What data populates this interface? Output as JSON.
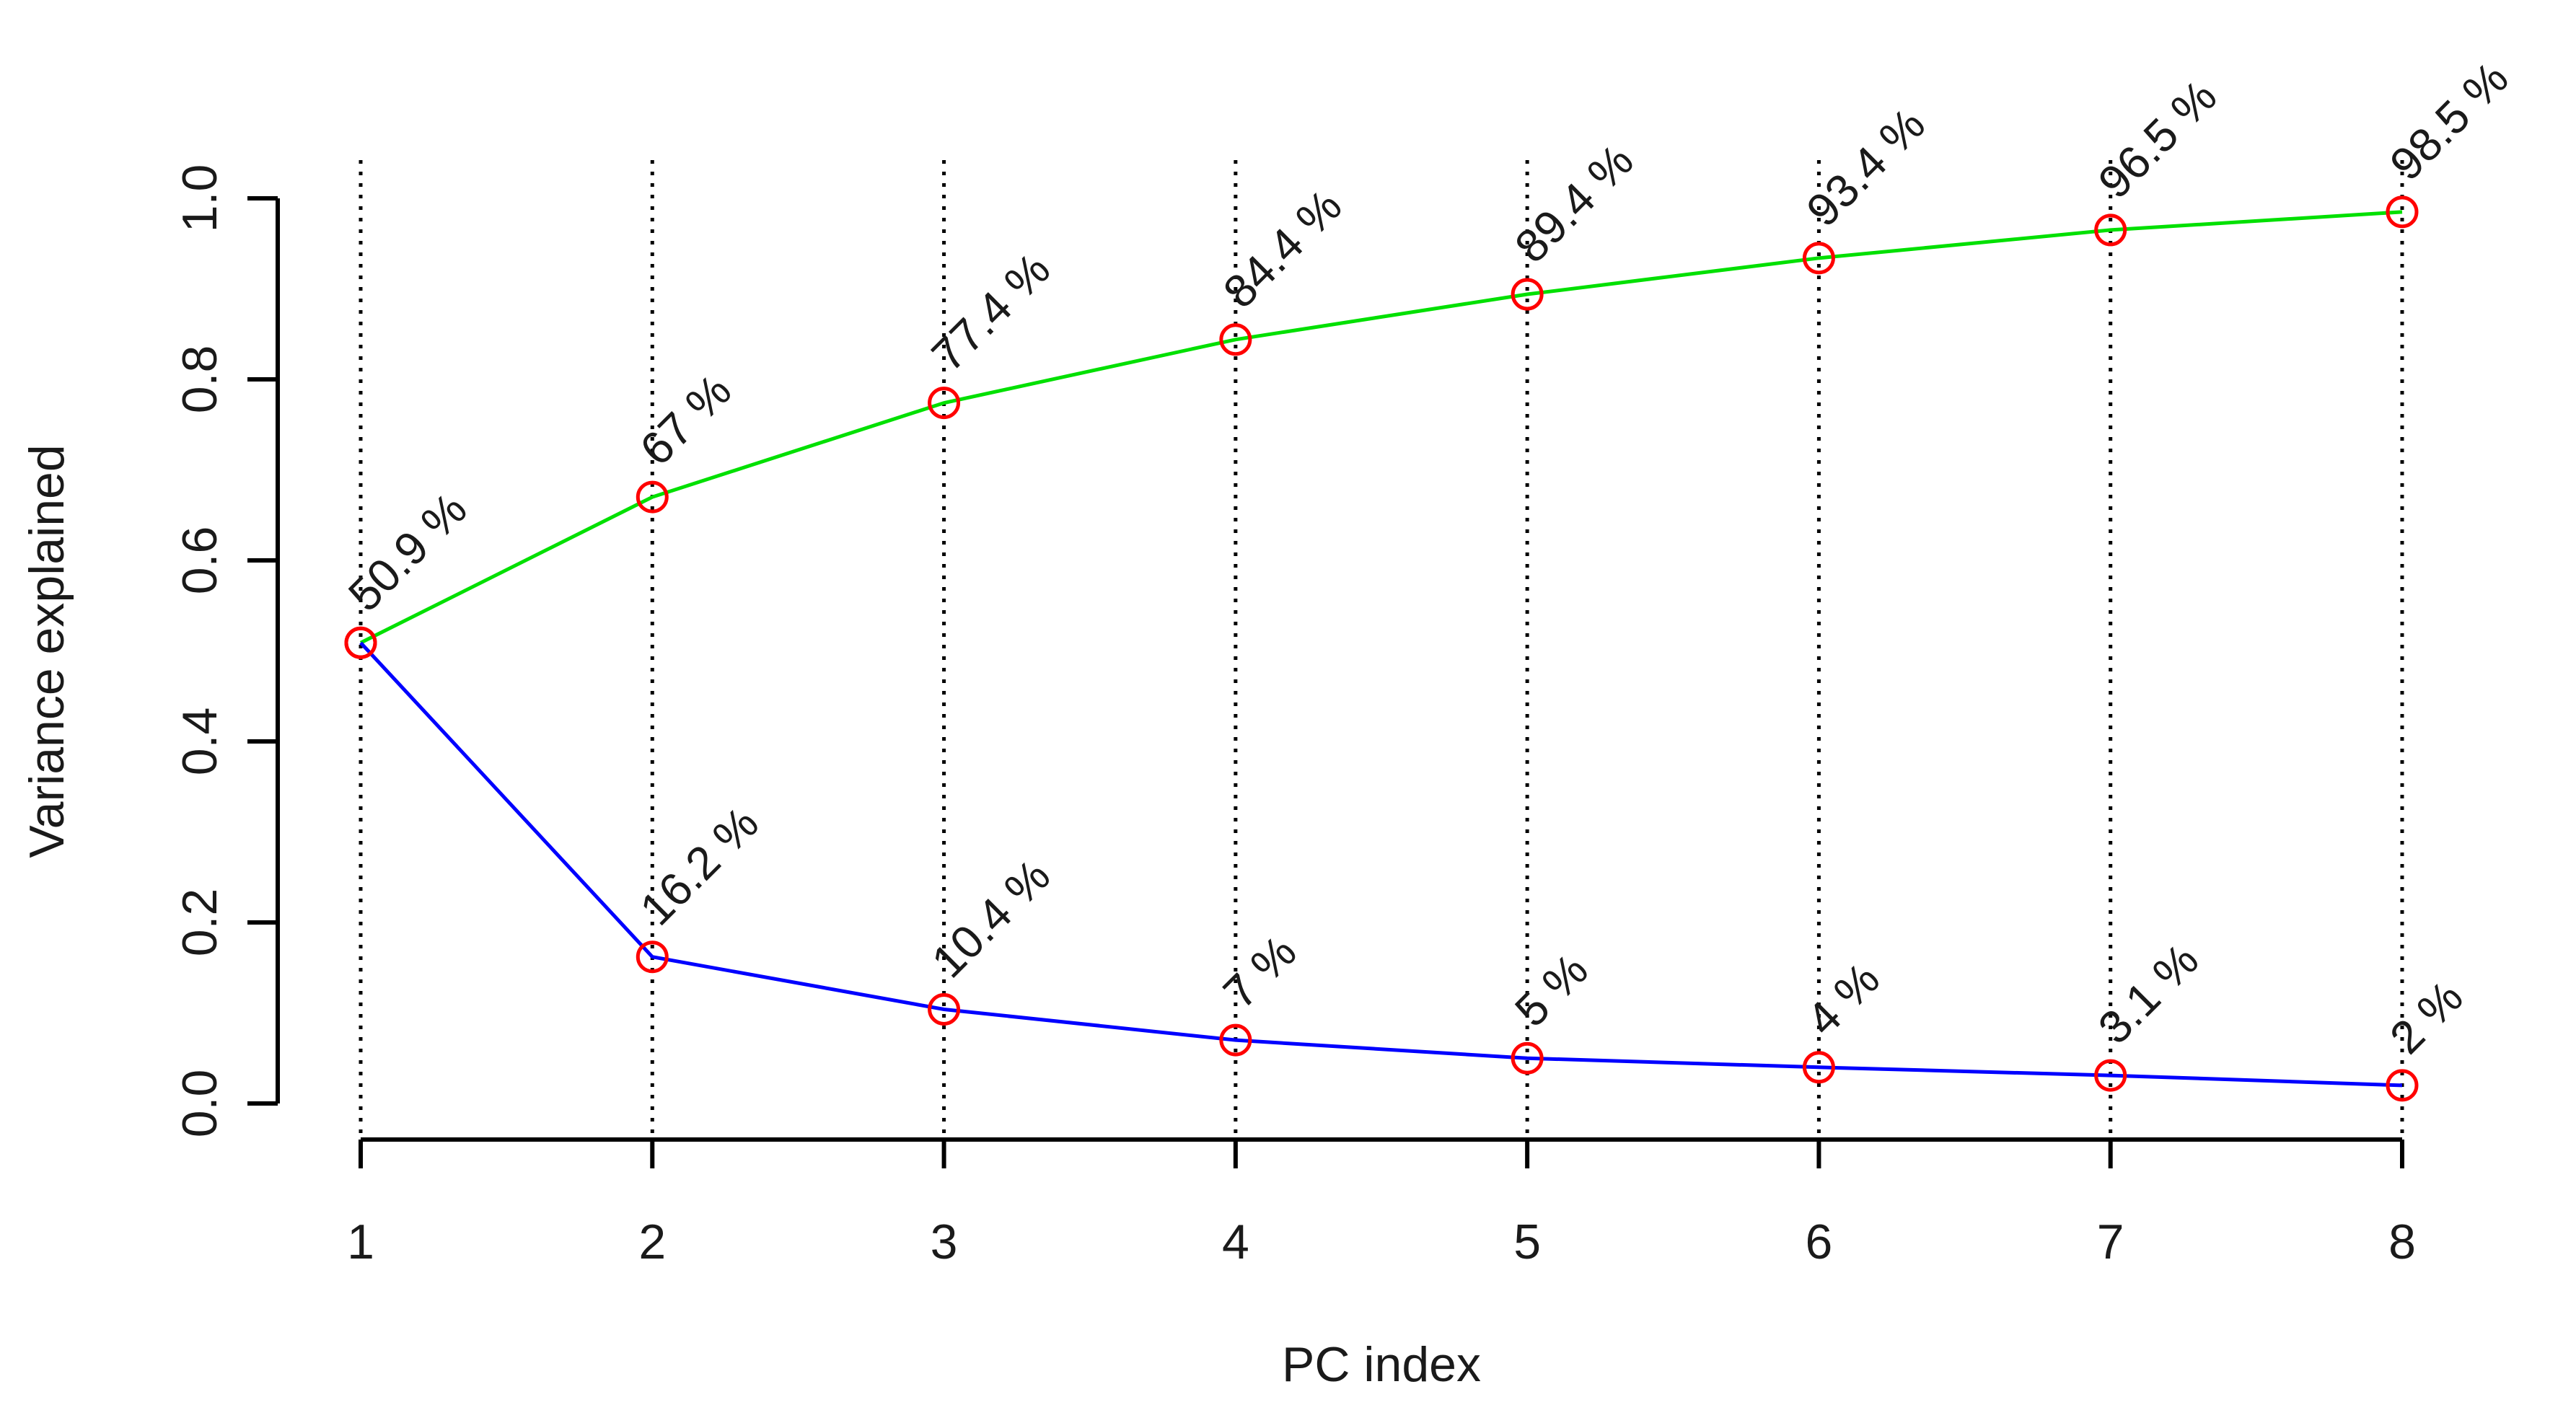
{
  "chart_data": {
    "type": "line",
    "title": "",
    "xlabel": "PC index",
    "ylabel": "Variance explained",
    "x": [
      1,
      2,
      3,
      4,
      5,
      6,
      7,
      8
    ],
    "xlim": [
      1,
      8
    ],
    "ylim": [
      0,
      1
    ],
    "x_ticks": [
      "1",
      "2",
      "3",
      "4",
      "5",
      "6",
      "7",
      "8"
    ],
    "y_ticks": [
      "0.0",
      "0.2",
      "0.4",
      "0.6",
      "0.8",
      "1.0"
    ],
    "grid": "vertical dotted lines at each PC index",
    "series": [
      {
        "color": "#00e000",
        "marker_color": "#ff0000",
        "values": [
          0.509,
          0.67,
          0.774,
          0.844,
          0.894,
          0.934,
          0.965,
          0.985
        ],
        "labels": [
          "50.9 %",
          "67 %",
          "77.4 %",
          "84.4 %",
          "89.4 %",
          "93.4 %",
          "96.5 %",
          "98.5 %"
        ]
      },
      {
        "color": "#0000ff",
        "marker_color": "#ff0000",
        "values": [
          0.509,
          0.162,
          0.104,
          0.07,
          0.05,
          0.04,
          0.031,
          0.02
        ],
        "labels": [
          "",
          "16.2 %",
          "10.4 %",
          "7 %",
          "5 %",
          "4 %",
          "3.1 %",
          "2 %"
        ]
      }
    ]
  }
}
